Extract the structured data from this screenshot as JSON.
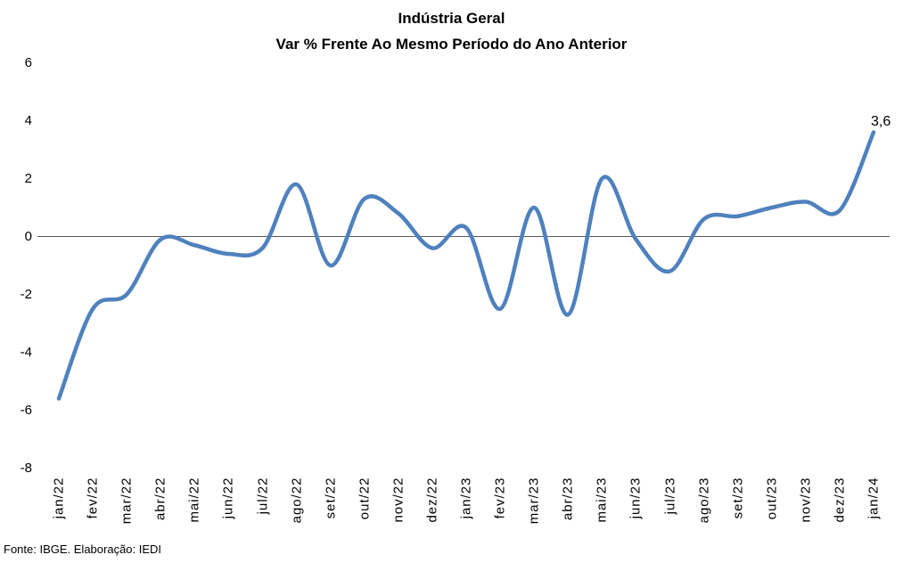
{
  "title": {
    "line1": "Indústria Geral",
    "line2": "Var % Frente Ao Mesmo Período do Ano Anterior"
  },
  "footer": {
    "text": "Fonte: IBGE. Elaboração: IEDI"
  },
  "chart_data": {
    "type": "line",
    "title": "Indústria Geral",
    "subtitle": "Var % Frente Ao Mesmo Período do Ano Anterior",
    "categories": [
      "jan/22",
      "fev/22",
      "mar/22",
      "abr/22",
      "mai/22",
      "jun/22",
      "jul/22",
      "ago/22",
      "set/22",
      "out/22",
      "nov/22",
      "dez/22",
      "jan/23",
      "fev/23",
      "mar/23",
      "abr/23",
      "mai/23",
      "jun/23",
      "jul/23",
      "ago/23",
      "set/23",
      "out/23",
      "nov/23",
      "dez/23",
      "jan/24"
    ],
    "values": [
      -5.6,
      -2.5,
      -2.0,
      -0.1,
      -0.3,
      -0.6,
      -0.4,
      1.8,
      -1.0,
      1.3,
      0.8,
      -0.4,
      0.3,
      -2.5,
      1.0,
      -2.7,
      2.0,
      -0.1,
      -1.2,
      0.6,
      0.7,
      1.0,
      1.2,
      0.9,
      3.6
    ],
    "yticks": [
      6,
      4,
      2,
      0,
      -2,
      -4,
      -6,
      -8
    ],
    "ylim": [
      -8,
      6
    ],
    "smooth": true,
    "grid": "zero-line-only",
    "legend": "none",
    "line_color": "#4F81BD",
    "zero_line_color": "#595959",
    "last_point_label": "3,6"
  }
}
